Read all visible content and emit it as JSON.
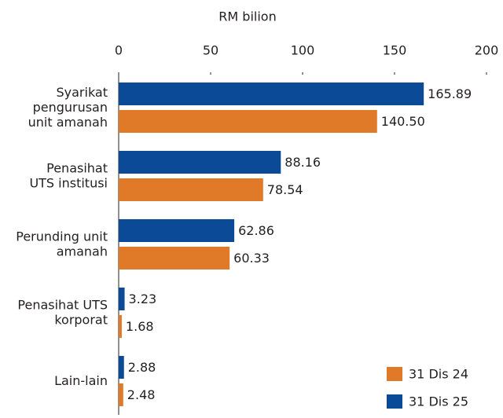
{
  "chart_data": {
    "type": "bar",
    "orientation": "horizontal",
    "x_label": "RM bilion",
    "categories": [
      "Syarikat\npengurusan\nunit amanah",
      "Penasihat\nUTS institusi",
      "Perunding unit\namanah",
      "Penasihat UTS\nkorporat",
      "Lain-lain"
    ],
    "series": [
      {
        "name": "31 Dis 25",
        "color": "#0b4a96",
        "values": [
          165.89,
          88.16,
          62.86,
          3.23,
          2.88
        ]
      },
      {
        "name": "31 Dis 24",
        "color": "#e07a28",
        "values": [
          140.5,
          78.54,
          60.33,
          1.68,
          2.48
        ]
      }
    ],
    "value_labels": [
      [
        "165.89",
        "88.16",
        "62.86",
        "3.23",
        "2.88"
      ],
      [
        "140.50",
        "78.54",
        "60.33",
        "1.68",
        "2.48"
      ]
    ],
    "xlim": [
      0,
      200
    ],
    "xticks": [
      0,
      50,
      100,
      150,
      200
    ],
    "legend": "lower right"
  }
}
